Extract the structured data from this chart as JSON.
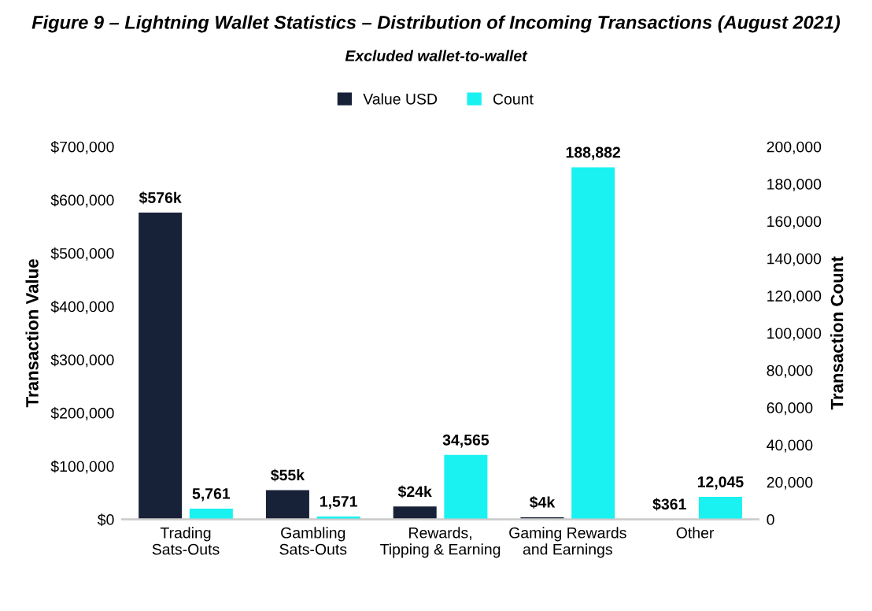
{
  "chart_data": {
    "type": "bar",
    "title": "Figure 9 – Lightning Wallet Statistics – Distribution of Incoming Transactions (August 2021)",
    "subtitle": "Excluded wallet-to-wallet",
    "ylabel": "Transaction Value",
    "y2label": "Transaction Count",
    "categories": [
      "Trading\nSats-Outs",
      "Gambling\nSats-Outs",
      "Rewards,\nTipping & Earning",
      "Gaming Rewards\nand Earnings",
      "Other"
    ],
    "series": [
      {
        "name": "Value USD",
        "color": "#172238",
        "values": [
          576000,
          55000,
          24000,
          4000,
          361
        ],
        "value_labels": [
          "$576k",
          "$55k",
          "$24k",
          "$4k",
          "$361"
        ]
      },
      {
        "name": "Count",
        "color": "#19f2f0",
        "axis": "y2",
        "values": [
          5761,
          1571,
          34565,
          188882,
          12045
        ],
        "value_labels": [
          "5,761",
          "1,571",
          "34,565",
          "188,882",
          "12,045"
        ]
      }
    ],
    "ylim": [
      0,
      700000
    ],
    "yticks": [
      {
        "value": 0,
        "label": "$0"
      },
      {
        "value": 100000,
        "label": "$100,000"
      },
      {
        "value": 200000,
        "label": "$200,000"
      },
      {
        "value": 300000,
        "label": "$300,000"
      },
      {
        "value": 400000,
        "label": "$400,000"
      },
      {
        "value": 500000,
        "label": "$500,000"
      },
      {
        "value": 600000,
        "label": "$600,000"
      },
      {
        "value": 700000,
        "label": "$700,000"
      }
    ],
    "y2lim": [
      0,
      200000
    ],
    "y2ticks": [
      0,
      {
        "value": 20000,
        "label": "20,000"
      },
      {
        "value": 40000,
        "label": "40,000"
      },
      {
        "value": 60000,
        "label": "60,000"
      },
      {
        "value": 80000,
        "label": "80,000"
      },
      {
        "value": 100000,
        "label": "100,000"
      },
      {
        "value": 120000,
        "label": "120,000"
      },
      {
        "value": 140000,
        "label": "140,000"
      },
      {
        "value": 160000,
        "label": "160,000"
      },
      {
        "value": 180000,
        "label": "180,000"
      },
      {
        "value": 200000,
        "label": "200,000"
      }
    ],
    "grid": false,
    "legend": "top"
  }
}
